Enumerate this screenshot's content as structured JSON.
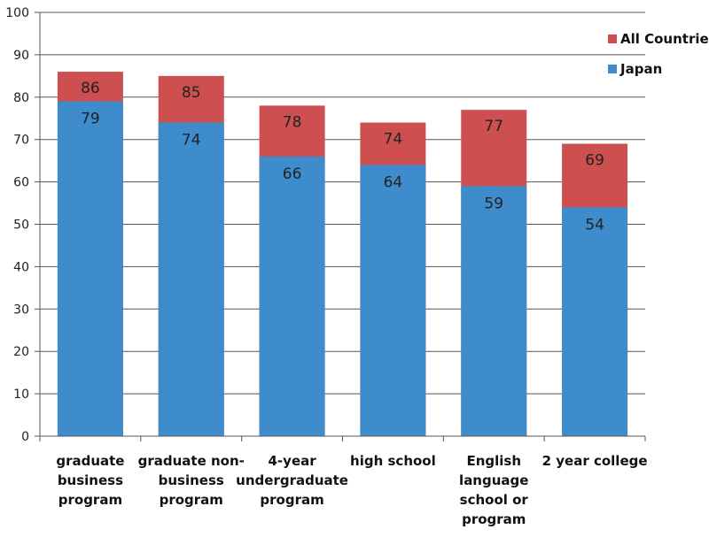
{
  "chart_data": {
    "type": "bar",
    "categories": [
      [
        "graduate",
        "business",
        "program"
      ],
      [
        "graduate non-",
        "business",
        "program"
      ],
      [
        "4-year",
        "undergraduate",
        "program"
      ],
      [
        "high school"
      ],
      [
        "English",
        "language",
        "school or",
        "program"
      ],
      [
        "2 year college"
      ]
    ],
    "series": [
      {
        "name": "Japan",
        "values": [
          79,
          74,
          66,
          64,
          59,
          54
        ],
        "color": "#3f8ccc"
      },
      {
        "name": "All Countries",
        "values": [
          86,
          85,
          78,
          74,
          77,
          69
        ],
        "color": "#cd4f4f"
      }
    ],
    "ylim": [
      0,
      100
    ],
    "yticks": [
      0,
      10,
      20,
      30,
      40,
      50,
      60,
      70,
      80,
      90,
      100
    ],
    "grid": true,
    "legend": "top-right",
    "note": "All Countries bars drawn behind Japan bars (overlapping, total height = All Countries value)"
  }
}
